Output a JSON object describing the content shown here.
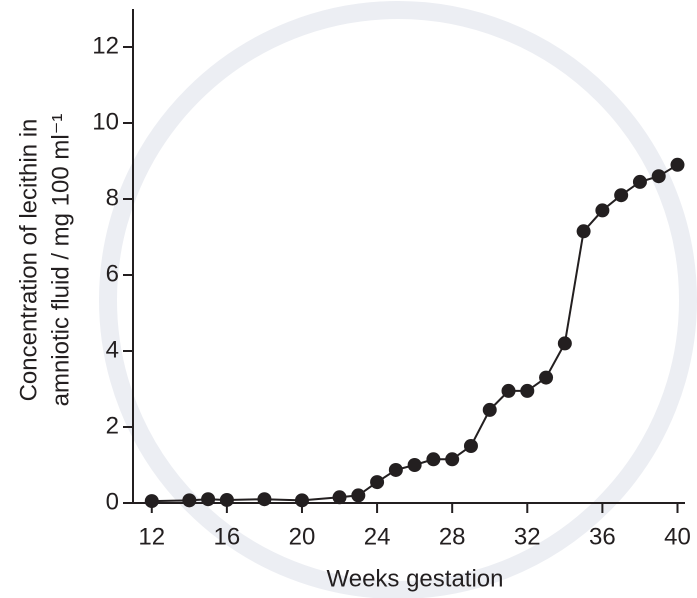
{
  "chart_data": {
    "type": "line",
    "x_label": "Weeks gestation",
    "y_label": [
      "Concentration of lecithin in",
      "amniotic fluid / mg 100 ml⁻¹"
    ],
    "x": [
      12,
      14,
      15,
      16,
      18,
      20,
      22,
      23,
      24,
      25,
      26,
      27,
      28,
      29,
      30,
      31,
      32,
      33,
      34,
      35,
      36,
      37,
      38,
      39,
      40
    ],
    "series": [
      {
        "color": "#231f20",
        "values": [
          0.05,
          0.07,
          0.1,
          0.08,
          0.1,
          0.07,
          0.15,
          0.2,
          0.55,
          0.87,
          1.0,
          1.15,
          1.15,
          1.5,
          2.45,
          2.95,
          2.95,
          3.3,
          4.2,
          7.15,
          7.7,
          8.1,
          8.45,
          8.6,
          8.9
        ]
      }
    ],
    "xlim": [
      11,
      40.4
    ],
    "ylim": [
      0,
      13
    ],
    "xticks": [
      12,
      16,
      20,
      24,
      28,
      32,
      36,
      40
    ],
    "yticks": [
      0,
      2,
      4,
      6,
      8,
      10,
      12
    ]
  }
}
